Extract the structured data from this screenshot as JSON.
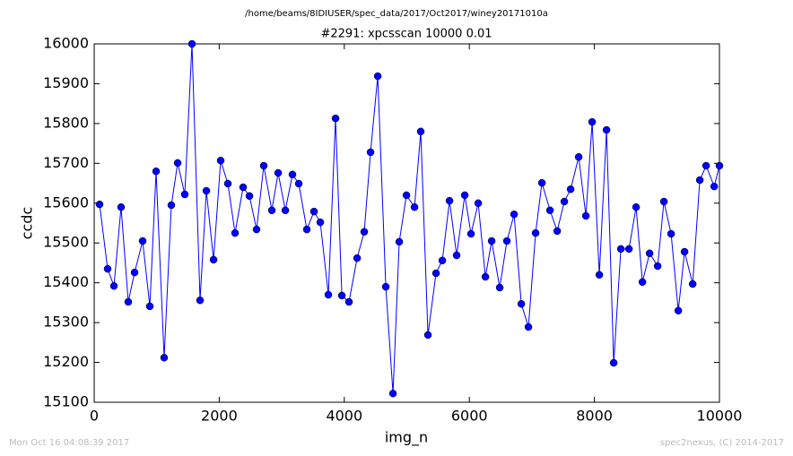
{
  "chart_data": {
    "type": "line",
    "suptitle": "/home/beams/8IDIUSER/spec_data/2017/Oct2017/winey20171010a",
    "title": "#2291: xpcsscan 10000 0.01",
    "xlabel": "img_n",
    "ylabel": "ccdc",
    "footer_left": "Mon Oct 16 04:08:39 2017",
    "footer_right": "spec2nexus, (C) 2014-2017",
    "xlim": [
      0,
      10000
    ],
    "xticks": [
      0,
      2000,
      4000,
      6000,
      8000,
      10000
    ],
    "ylim": [
      15100,
      16000
    ],
    "yticks": [
      15100,
      15200,
      15300,
      15400,
      15500,
      15600,
      15700,
      15800,
      15900,
      16000
    ],
    "grid": false,
    "series": [
      {
        "color": "#0000ff",
        "x": [
          86,
          215,
          316,
          430,
          545,
          646,
          775,
          890,
          990,
          1119,
          1234,
          1335,
          1449,
          1564,
          1693,
          1794,
          1909,
          2023,
          2138,
          2253,
          2382,
          2483,
          2597,
          2712,
          2841,
          2942,
          3057,
          3171,
          3272,
          3401,
          3516,
          3616,
          3745,
          3860,
          3961,
          4075,
          4205,
          4319,
          4420,
          4535,
          4664,
          4779,
          4879,
          4994,
          5123,
          5223,
          5338,
          5467,
          5568,
          5683,
          5797,
          5927,
          6027,
          6142,
          6257,
          6357,
          6486,
          6601,
          6716,
          6831,
          6945,
          7060,
          7161,
          7290,
          7405,
          7519,
          7620,
          7749,
          7864,
          7964,
          8079,
          8194,
          8309,
          8423,
          8553,
          8667,
          8768,
          8883,
          9012,
          9112,
          9227,
          9342,
          9442,
          9572,
          9686,
          9787,
          9916,
          10000
        ],
        "values": [
          15597,
          15435,
          15392,
          15590,
          15352,
          15426,
          15505,
          15341,
          15680,
          15212,
          15595,
          15701,
          15622,
          16000,
          15356,
          15631,
          15458,
          15707,
          15649,
          15525,
          15640,
          15618,
          15534,
          15694,
          15582,
          15676,
          15582,
          15672,
          15649,
          15534,
          15579,
          15552,
          15370,
          15813,
          15368,
          15352,
          15462,
          15528,
          15728,
          15919,
          15390,
          15122,
          15503,
          15620,
          15590,
          15780,
          15269,
          15424,
          15456,
          15606,
          15469,
          15620,
          15523,
          15600,
          15415,
          15505,
          15388,
          15505,
          15572,
          15347,
          15289,
          15525,
          15651,
          15582,
          15530,
          15604,
          15635,
          15716,
          15568,
          15804,
          15420,
          15784,
          15199,
          15485,
          15485,
          15590,
          15402,
          15474,
          15442,
          15604,
          15523,
          15330,
          15478,
          15397,
          15658,
          15694,
          15642,
          15694
        ]
      }
    ]
  }
}
